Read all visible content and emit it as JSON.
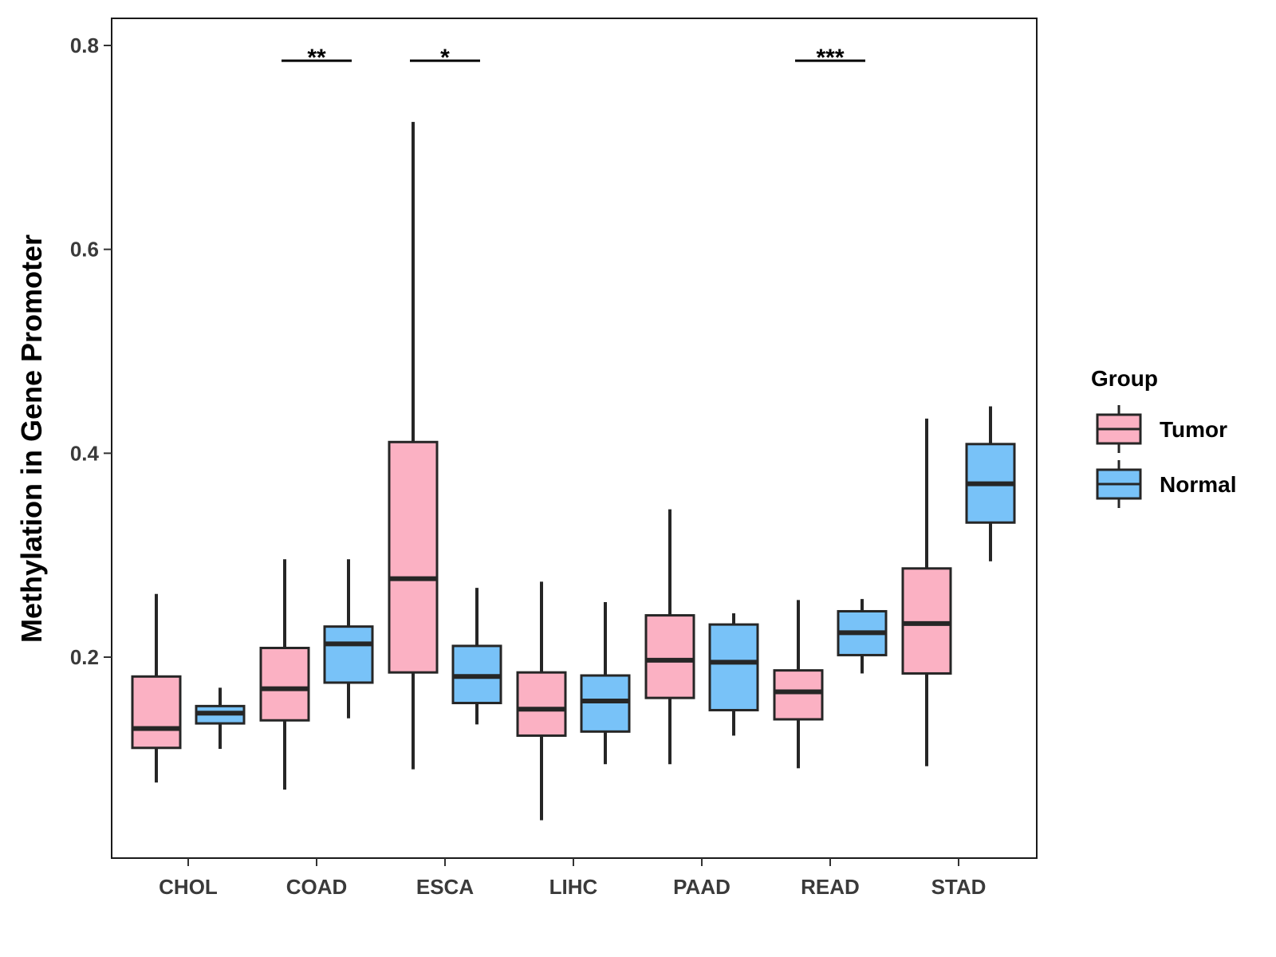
{
  "chart_data": {
    "type": "boxplot",
    "title": "",
    "xlabel": "",
    "ylabel": "Methylation in Gene Promoter",
    "ylim": [
      0.0,
      0.82
    ],
    "yticks": [
      0.2,
      0.4,
      0.6,
      0.8
    ],
    "ytick_labels": [
      "0.2",
      "0.4",
      "0.6",
      "0.8"
    ],
    "categories": [
      "CHOL",
      "COAD",
      "ESCA",
      "LIHC",
      "PAAD",
      "READ",
      "STAD"
    ],
    "legend": {
      "title": "Group",
      "position": "right",
      "entries": [
        {
          "label": "Tumor",
          "color": "#FBB1C3"
        },
        {
          "label": "Normal",
          "color": "#78C2F8"
        }
      ]
    },
    "series": [
      {
        "name": "Tumor",
        "color": "#FBB1C3",
        "boxes": [
          {
            "whislo": 0.077,
            "q1": 0.111,
            "med": 0.13,
            "q3": 0.181,
            "whishi": 0.262
          },
          {
            "whislo": 0.07,
            "q1": 0.138,
            "med": 0.169,
            "q3": 0.209,
            "whishi": 0.296
          },
          {
            "whislo": 0.09,
            "q1": 0.185,
            "med": 0.277,
            "q3": 0.411,
            "whishi": 0.725
          },
          {
            "whislo": 0.04,
            "q1": 0.123,
            "med": 0.149,
            "q3": 0.185,
            "whishi": 0.274
          },
          {
            "whislo": 0.095,
            "q1": 0.16,
            "med": 0.197,
            "q3": 0.241,
            "whishi": 0.345
          },
          {
            "whislo": 0.091,
            "q1": 0.139,
            "med": 0.166,
            "q3": 0.187,
            "whishi": 0.256
          },
          {
            "whislo": 0.093,
            "q1": 0.184,
            "med": 0.233,
            "q3": 0.287,
            "whishi": 0.434
          }
        ]
      },
      {
        "name": "Normal",
        "color": "#78C2F8",
        "boxes": [
          {
            "whislo": 0.11,
            "q1": 0.135,
            "med": 0.145,
            "q3": 0.152,
            "whishi": 0.17
          },
          {
            "whislo": 0.14,
            "q1": 0.175,
            "med": 0.213,
            "q3": 0.23,
            "whishi": 0.296
          },
          {
            "whislo": 0.134,
            "q1": 0.155,
            "med": 0.181,
            "q3": 0.211,
            "whishi": 0.268
          },
          {
            "whislo": 0.095,
            "q1": 0.127,
            "med": 0.157,
            "q3": 0.182,
            "whishi": 0.254
          },
          {
            "whislo": 0.123,
            "q1": 0.148,
            "med": 0.195,
            "q3": 0.232,
            "whishi": 0.243
          },
          {
            "whislo": 0.184,
            "q1": 0.202,
            "med": 0.224,
            "q3": 0.245,
            "whishi": 0.257
          },
          {
            "whislo": 0.294,
            "q1": 0.332,
            "med": 0.37,
            "q3": 0.409,
            "whishi": 0.446
          }
        ]
      }
    ],
    "annotations": [
      {
        "category": "COAD",
        "label": "**",
        "y": 0.785
      },
      {
        "category": "ESCA",
        "label": "*",
        "y": 0.785
      },
      {
        "category": "READ",
        "label": "***",
        "y": 0.785
      }
    ]
  }
}
